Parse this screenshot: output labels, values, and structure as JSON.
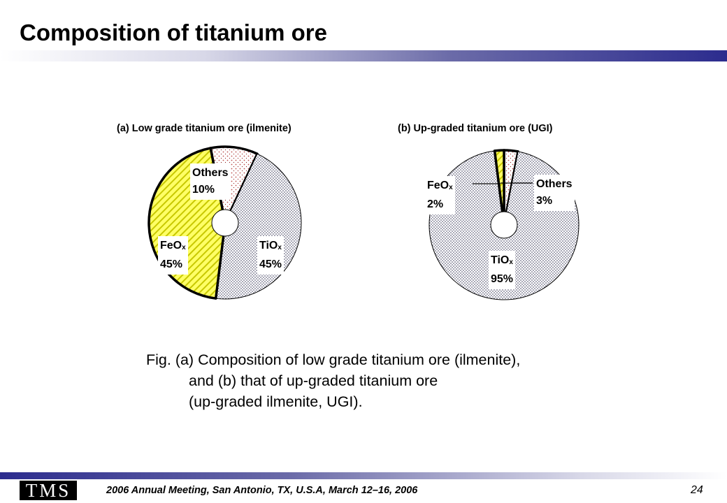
{
  "slide": {
    "title": "Composition of titanium ore",
    "caption_lines": [
      "Fig.  (a) Composition of low grade titanium ore (ilmenite),",
      "and (b) that of up-graded titanium ore",
      "(up-graded ilmenite, UGI)."
    ],
    "footer_text": "2006 Annual Meeting, San Antonio, TX, U.S.A, March 12–16, 2006",
    "page_number": "24",
    "logo_text": "TMS"
  },
  "chart_data": [
    {
      "type": "pie",
      "title": "(a) Low grade titanium ore (ilmenite)",
      "series": [
        {
          "name": "TiO",
          "sub": "x",
          "value": 45,
          "value_label": "45%",
          "pattern": "dots",
          "color": "#e8e8f2"
        },
        {
          "name": "FeO",
          "sub": "x",
          "value": 45,
          "value_label": "45%",
          "pattern": "hatch",
          "color": "#ffff66"
        },
        {
          "name": "Others",
          "sub": "",
          "value": 10,
          "value_label": "10%",
          "pattern": "stipple",
          "color": "#f4cccc"
        }
      ]
    },
    {
      "type": "pie",
      "title": "(b) Up-graded titanium ore (UGI)",
      "series": [
        {
          "name": "TiO",
          "sub": "x",
          "value": 95,
          "value_label": "95%",
          "pattern": "dots",
          "color": "#e8e8f2"
        },
        {
          "name": "FeO",
          "sub": "x",
          "value": 2,
          "value_label": "2%",
          "pattern": "hatch",
          "color": "#ffff66"
        },
        {
          "name": "Others",
          "sub": "",
          "value": 3,
          "value_label": "3%",
          "pattern": "stipple",
          "color": "#f4cccc"
        }
      ]
    }
  ]
}
